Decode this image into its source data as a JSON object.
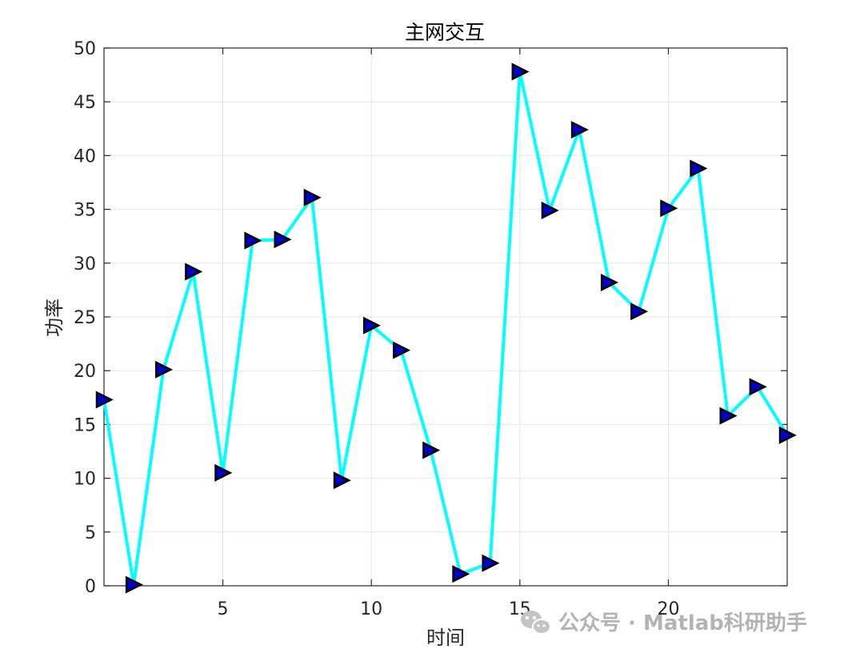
{
  "chart_data": {
    "type": "line",
    "title": "主网交互",
    "xlabel": "时间",
    "ylabel": "功率",
    "xlim": [
      1,
      24
    ],
    "ylim": [
      0,
      50
    ],
    "xticks": [
      5,
      10,
      15,
      20
    ],
    "yticks": [
      0,
      5,
      10,
      15,
      20,
      25,
      30,
      35,
      40,
      45,
      50
    ],
    "grid": true,
    "legend": "none",
    "x": [
      1,
      2,
      3,
      4,
      5,
      6,
      7,
      8,
      9,
      10,
      11,
      12,
      13,
      14,
      15,
      16,
      17,
      18,
      19,
      20,
      21,
      22,
      23,
      24
    ],
    "series": [
      {
        "values": [
          17.3,
          0.1,
          20.1,
          29.2,
          10.5,
          32.1,
          32.2,
          36.1,
          9.8,
          24.2,
          21.9,
          12.6,
          1.1,
          2.1,
          47.8,
          34.9,
          42.4,
          28.2,
          25.5,
          35.1,
          38.8,
          15.8,
          18.5,
          14.0
        ],
        "line_color": "#00FFFF",
        "marker": "triangle-right",
        "marker_face": "#0000CC",
        "marker_edge": "#000000"
      }
    ]
  },
  "watermark": {
    "text": "公众号 · Matlab科研助手",
    "icon": "wechat-icon"
  }
}
